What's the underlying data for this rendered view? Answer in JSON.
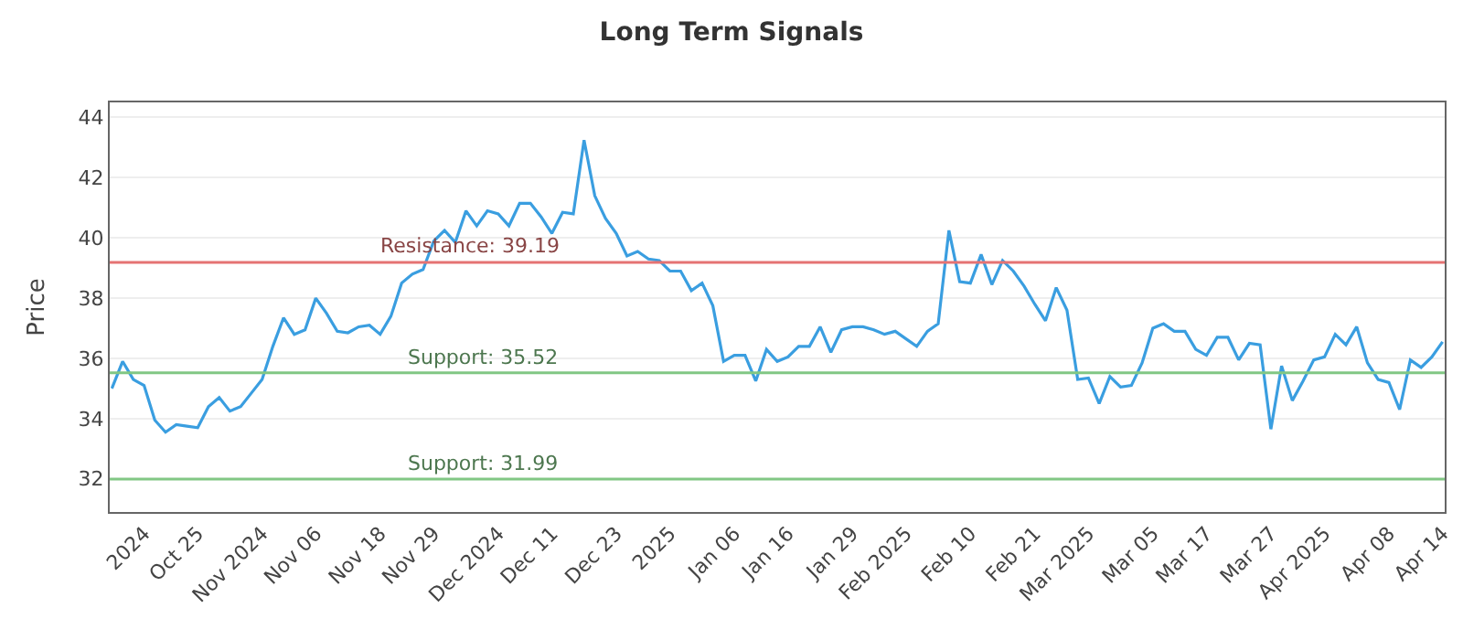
{
  "chart_data": {
    "type": "line",
    "title": "Long Term Signals",
    "ylabel": "Price",
    "categories": [
      null,
      null,
      null,
      "2024",
      null,
      null,
      null,
      null,
      "Oct 25",
      null,
      null,
      null,
      null,
      null,
      "Nov 2024",
      null,
      null,
      null,
      null,
      "Nov 06",
      null,
      null,
      null,
      null,
      null,
      "Nov 18",
      null,
      null,
      null,
      null,
      "Nov 29",
      null,
      null,
      null,
      null,
      null,
      "Dec 2024",
      null,
      null,
      null,
      null,
      "Dec 11",
      null,
      null,
      null,
      null,
      null,
      "Dec 23",
      null,
      null,
      null,
      null,
      "2025",
      null,
      null,
      null,
      null,
      null,
      "Jan 06",
      null,
      null,
      null,
      null,
      "Jan 16",
      null,
      null,
      null,
      null,
      null,
      "Jan 29",
      null,
      null,
      null,
      null,
      "Feb 2025",
      null,
      null,
      null,
      null,
      null,
      "Feb 10",
      null,
      null,
      null,
      null,
      null,
      "Feb 21",
      null,
      null,
      null,
      null,
      "Mar 2025",
      null,
      null,
      null,
      null,
      null,
      "Mar 05",
      null,
      null,
      null,
      null,
      "Mar 17",
      null,
      null,
      null,
      null,
      null,
      "Mar 27",
      null,
      null,
      null,
      null,
      "Apr 2025",
      null,
      null,
      null,
      null,
      null,
      "Apr 08",
      null,
      null,
      null,
      null,
      "Apr 14"
    ],
    "series": [
      {
        "color": "#3a9ee0",
        "values": [
          35.0,
          35.9,
          35.3,
          35.1,
          33.95,
          33.55,
          33.8,
          33.75,
          33.7,
          34.4,
          34.7,
          34.25,
          34.4,
          34.85,
          35.3,
          36.4,
          37.35,
          36.8,
          36.95,
          38.0,
          37.5,
          36.9,
          36.85,
          37.05,
          37.1,
          36.8,
          37.4,
          38.5,
          38.8,
          38.95,
          39.9,
          40.25,
          39.85,
          40.9,
          40.4,
          40.9,
          40.8,
          40.4,
          41.15,
          41.15,
          40.7,
          40.15,
          40.85,
          40.8,
          43.25,
          41.4,
          40.65,
          40.15,
          39.4,
          39.55,
          39.3,
          39.25,
          38.9,
          38.9,
          38.25,
          38.5,
          37.75,
          35.9,
          36.1,
          36.1,
          35.25,
          36.3,
          35.9,
          36.05,
          36.4,
          36.4,
          37.05,
          36.2,
          36.95,
          37.05,
          37.05,
          36.95,
          36.8,
          36.9,
          36.65,
          36.4,
          36.9,
          37.15,
          40.25,
          38.55,
          38.5,
          39.45,
          38.45,
          39.25,
          38.9,
          38.4,
          37.8,
          37.25,
          38.35,
          37.6,
          35.3,
          35.35,
          34.5,
          35.4,
          35.05,
          35.1,
          35.85,
          37.0,
          37.15,
          36.9,
          36.9,
          36.3,
          36.1,
          36.7,
          36.7,
          35.95,
          36.5,
          36.45,
          33.65,
          35.75,
          34.6,
          35.25,
          35.95,
          36.05,
          36.8,
          36.45,
          37.05,
          35.85,
          35.3,
          35.2,
          34.3,
          35.95,
          35.7,
          36.05,
          36.55
        ]
      }
    ],
    "ylim": [
      30.9,
      44.5
    ],
    "yticks": [
      32,
      34,
      36,
      38,
      40,
      42,
      44
    ],
    "grid": "y",
    "marker": "none",
    "line_style": "solid",
    "ref_lines": [
      {
        "axis": "y",
        "value": 39.19,
        "label": "Resistance: 39.19",
        "color": "#e57373"
      },
      {
        "axis": "y",
        "value": 35.52,
        "label": "Support: 35.52",
        "color": "#81c784"
      },
      {
        "axis": "y",
        "value": 31.99,
        "label": "Support: 31.99",
        "color": "#81c784"
      }
    ]
  }
}
